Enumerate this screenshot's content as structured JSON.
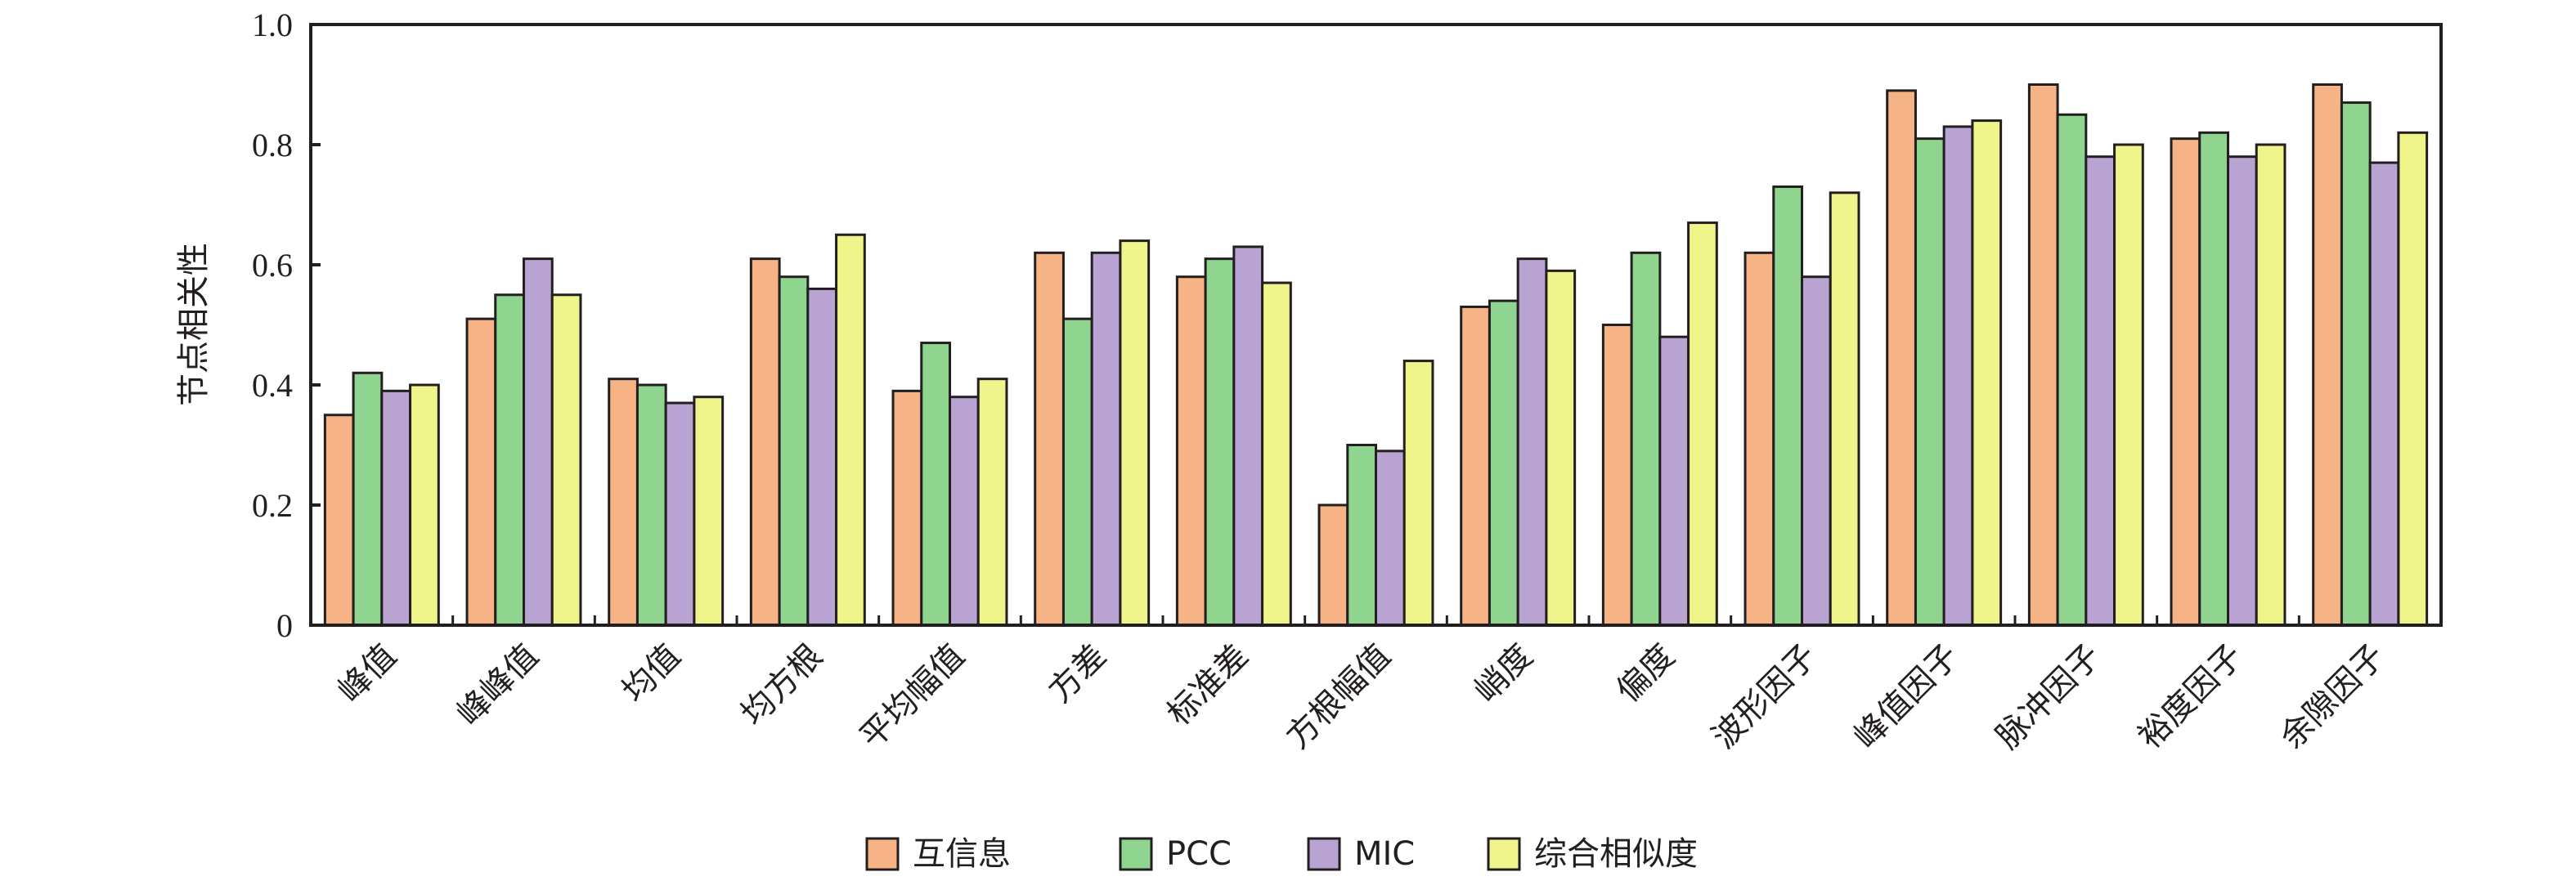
{
  "chart_data": {
    "type": "bar",
    "title": "",
    "xlabel": "",
    "ylabel": "节点相关性",
    "ylim": [
      0,
      1.0
    ],
    "yticks": [
      "0",
      "0.2",
      "0.4",
      "0.6",
      "0.8",
      "1.0"
    ],
    "ytick_values": [
      0,
      0.2,
      0.4,
      0.6,
      0.8,
      1.0
    ],
    "grid": false,
    "legend_position": "bottom-center",
    "categories": [
      "峰值",
      "峰峰值",
      "均值",
      "均方根",
      "平均幅值",
      "方差",
      "标准差",
      "方根幅值",
      "峭度",
      "偏度",
      "波形因子",
      "峰值因子",
      "脉冲因子",
      "裕度因子",
      "余隙因子"
    ],
    "series": [
      {
        "name": "互信息",
        "color": "#f6b386",
        "values": [
          0.35,
          0.51,
          0.41,
          0.61,
          0.39,
          0.62,
          0.58,
          0.2,
          0.53,
          0.5,
          0.62,
          0.89,
          0.9,
          0.81,
          0.9
        ]
      },
      {
        "name": "PCC",
        "color": "#8fd58f",
        "values": [
          0.42,
          0.55,
          0.4,
          0.58,
          0.47,
          0.51,
          0.61,
          0.3,
          0.54,
          0.62,
          0.73,
          0.81,
          0.85,
          0.82,
          0.87
        ]
      },
      {
        "name": "MIC",
        "color": "#b8a3d3",
        "values": [
          0.39,
          0.61,
          0.37,
          0.56,
          0.38,
          0.62,
          0.63,
          0.29,
          0.61,
          0.48,
          0.58,
          0.83,
          0.78,
          0.78,
          0.77
        ]
      },
      {
        "name": "综合相似度",
        "color": "#eff48b",
        "values": [
          0.4,
          0.55,
          0.38,
          0.65,
          0.41,
          0.64,
          0.57,
          0.44,
          0.59,
          0.67,
          0.72,
          0.84,
          0.8,
          0.8,
          0.82
        ]
      }
    ]
  }
}
